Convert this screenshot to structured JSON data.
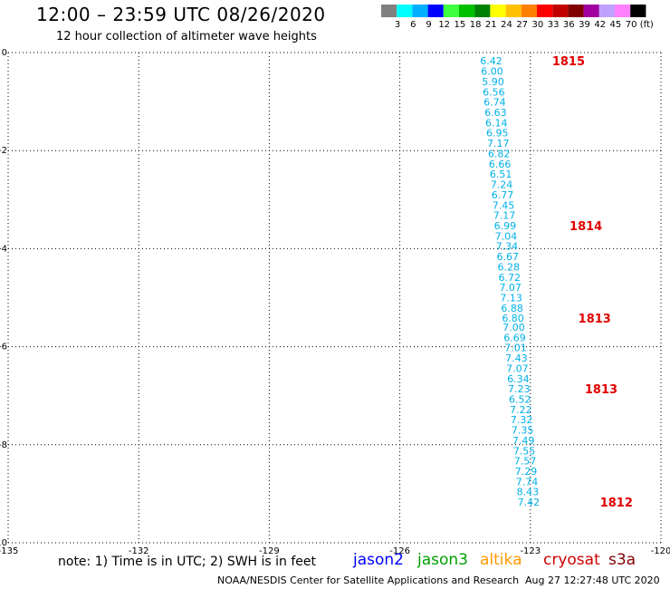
{
  "header": {
    "title": "12:00 – 23:59 UTC 08/26/2020",
    "subtitle": "12 hour collection of altimeter wave heights"
  },
  "colorbar": {
    "colors": [
      "#808080",
      "#00ffff",
      "#00b0ff",
      "#0000ff",
      "#40ff40",
      "#00c000",
      "#008000",
      "#ffff00",
      "#ffc000",
      "#ff8000",
      "#ff0000",
      "#c00000",
      "#800000",
      "#a000a0",
      "#c0a0ff",
      "#ff80ff",
      "#000000"
    ],
    "labels": [
      "3",
      "6",
      "9",
      "12",
      "15",
      "18",
      "21",
      "24",
      "27",
      "30",
      "33",
      "36",
      "39",
      "42",
      "45",
      "70",
      "(ft)"
    ]
  },
  "footer": {
    "note": "note: 1) Time is in UTC; 2) SWH is in feet",
    "credit": "NOAA/NESDIS Center for Satellite Applications and Research",
    "timestamp": "Aug 27 12:27:48 UTC 2020"
  },
  "satellites": [
    {
      "name": "jason2",
      "color": "#0000ff"
    },
    {
      "name": "jason3",
      "color": "#00a000"
    },
    {
      "name": "altika",
      "color": "#ff9900"
    },
    {
      "name": "cryosat",
      "color": "#d00000"
    },
    {
      "name": "s3a",
      "color": "#800000"
    }
  ],
  "chart_data": {
    "type": "scatter",
    "xlim": [
      -135,
      -120
    ],
    "ylim": [
      -10,
      0
    ],
    "x_ticks": [
      "-135",
      "-132",
      "-129",
      "-126",
      "-123",
      "-120"
    ],
    "y_ticks": [
      "0",
      "-2",
      "-4",
      "-6",
      "-8",
      "-10"
    ],
    "grid": true,
    "points": [
      {
        "x": -123.9,
        "y": -0.17,
        "v": "6.42"
      },
      {
        "x": -123.88,
        "y": -0.38,
        "v": "6.00"
      },
      {
        "x": -123.86,
        "y": -0.59,
        "v": "5.90"
      },
      {
        "x": -123.84,
        "y": -0.8,
        "v": "6.56"
      },
      {
        "x": -123.82,
        "y": -1.01,
        "v": "6.74"
      },
      {
        "x": -123.8,
        "y": -1.22,
        "v": "6.63"
      },
      {
        "x": -123.78,
        "y": -1.43,
        "v": "6.14"
      },
      {
        "x": -123.76,
        "y": -1.64,
        "v": "6.95"
      },
      {
        "x": -123.74,
        "y": -1.85,
        "v": "7.17"
      },
      {
        "x": -123.72,
        "y": -2.06,
        "v": "6.82"
      },
      {
        "x": -123.7,
        "y": -2.27,
        "v": "6.66"
      },
      {
        "x": -123.68,
        "y": -2.48,
        "v": "6.51"
      },
      {
        "x": -123.66,
        "y": -2.69,
        "v": "7.24"
      },
      {
        "x": -123.64,
        "y": -2.9,
        "v": "6.77"
      },
      {
        "x": -123.62,
        "y": -3.11,
        "v": "7.45"
      },
      {
        "x": -123.6,
        "y": -3.32,
        "v": "7.17"
      },
      {
        "x": -123.58,
        "y": -3.53,
        "v": "6.99"
      },
      {
        "x": -123.56,
        "y": -3.74,
        "v": "7.04"
      },
      {
        "x": -123.54,
        "y": -3.95,
        "v": "7.34"
      },
      {
        "x": -123.52,
        "y": -4.16,
        "v": "6.67"
      },
      {
        "x": -123.5,
        "y": -4.37,
        "v": "6.28"
      },
      {
        "x": -123.48,
        "y": -4.58,
        "v": "6.72"
      },
      {
        "x": -123.46,
        "y": -4.79,
        "v": "7.07"
      },
      {
        "x": -123.44,
        "y": -5.0,
        "v": "7.13"
      },
      {
        "x": -123.42,
        "y": -5.21,
        "v": "6.88"
      },
      {
        "x": -123.4,
        "y": -5.42,
        "v": "6.80"
      },
      {
        "x": -123.38,
        "y": -5.6,
        "v": "7.00"
      },
      {
        "x": -123.36,
        "y": -5.81,
        "v": "6.69"
      },
      {
        "x": -123.34,
        "y": -6.02,
        "v": "7.01"
      },
      {
        "x": -123.32,
        "y": -6.23,
        "v": "7.43"
      },
      {
        "x": -123.3,
        "y": -6.44,
        "v": "7.07"
      },
      {
        "x": -123.28,
        "y": -6.65,
        "v": "6.34"
      },
      {
        "x": -123.26,
        "y": -6.86,
        "v": "7.23"
      },
      {
        "x": -123.24,
        "y": -7.07,
        "v": "6.52"
      },
      {
        "x": -123.22,
        "y": -7.28,
        "v": "7.22"
      },
      {
        "x": -123.2,
        "y": -7.49,
        "v": "7.32"
      },
      {
        "x": -123.18,
        "y": -7.7,
        "v": "7.35"
      },
      {
        "x": -123.16,
        "y": -7.91,
        "v": "7.49"
      },
      {
        "x": -123.14,
        "y": -8.12,
        "v": "7.55"
      },
      {
        "x": -123.12,
        "y": -8.33,
        "v": "7.57"
      },
      {
        "x": -123.1,
        "y": -8.54,
        "v": "7.29"
      },
      {
        "x": -123.08,
        "y": -8.75,
        "v": "7.74"
      },
      {
        "x": -123.06,
        "y": -8.96,
        "v": "8.43"
      },
      {
        "x": -123.04,
        "y": -9.17,
        "v": "7.42"
      }
    ],
    "time_labels": [
      {
        "x": -122.5,
        "y": -0.17,
        "text": "1815"
      },
      {
        "x": -122.1,
        "y": -3.53,
        "text": "1814"
      },
      {
        "x": -121.9,
        "y": -5.42,
        "text": "1813"
      },
      {
        "x": -121.75,
        "y": -6.86,
        "text": "1813"
      },
      {
        "x": -121.4,
        "y": -9.17,
        "text": "1812"
      }
    ],
    "point_color": "#00b0e8",
    "time_label_color": "#e00000"
  }
}
